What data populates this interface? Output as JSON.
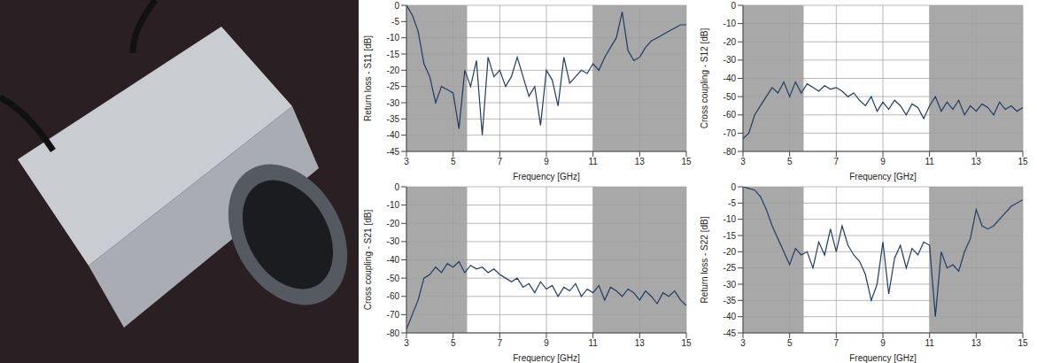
{
  "chart_data": [
    {
      "type": "line",
      "x_label": "Frequency [GHz]",
      "y_label": "Return loss - S11 [dB]",
      "grid": true,
      "color": "#1f3c64",
      "xlim": [
        3,
        15
      ],
      "xticks": [
        3,
        5,
        7,
        9,
        11,
        13,
        15
      ],
      "ylim": [
        -45,
        0
      ],
      "yticks": [
        -45,
        -40,
        -35,
        -30,
        -25,
        -20,
        -15,
        -10,
        -5,
        0
      ],
      "bands": [
        [
          3,
          5.6
        ],
        [
          11,
          15
        ]
      ],
      "x": [
        3,
        3.25,
        3.5,
        3.75,
        4,
        4.25,
        4.5,
        4.75,
        5,
        5.25,
        5.5,
        5.75,
        6,
        6.25,
        6.5,
        6.75,
        7,
        7.25,
        7.5,
        7.75,
        8,
        8.25,
        8.5,
        8.75,
        9,
        9.25,
        9.5,
        9.75,
        10,
        10.25,
        10.5,
        10.75,
        11,
        11.25,
        11.5,
        11.75,
        12,
        12.25,
        12.5,
        12.75,
        13,
        13.25,
        13.5,
        13.75,
        14,
        14.25,
        14.5,
        14.75,
        15
      ],
      "values": [
        0,
        -3,
        -8,
        -18,
        -22,
        -30,
        -25,
        -26,
        -27,
        -38,
        -20,
        -25,
        -17,
        -40,
        -16,
        -22,
        -20,
        -25,
        -22,
        -16,
        -22,
        -28,
        -25,
        -37,
        -20,
        -23,
        -31,
        -16,
        -24,
        -22,
        -20,
        -21,
        -18,
        -20,
        -16,
        -13,
        -10,
        -2,
        -14,
        -17,
        -16,
        -13,
        -11,
        -10,
        -9,
        -8,
        -7,
        -6,
        -6
      ]
    },
    {
      "type": "line",
      "x_label": "Frequency [GHz]",
      "y_label": "Cross coupling - S12 [dB]",
      "grid": true,
      "color": "#1f3c64",
      "xlim": [
        3,
        15
      ],
      "xticks": [
        3,
        5,
        7,
        9,
        11,
        13,
        15
      ],
      "ylim": [
        -80,
        0
      ],
      "yticks": [
        -80,
        -70,
        -60,
        -50,
        -40,
        -30,
        -20,
        -10,
        0
      ],
      "bands": [
        [
          3,
          5.6
        ],
        [
          11,
          15
        ]
      ],
      "x": [
        3,
        3.25,
        3.5,
        3.75,
        4,
        4.25,
        4.5,
        4.75,
        5,
        5.25,
        5.5,
        5.75,
        6,
        6.25,
        6.5,
        6.75,
        7,
        7.25,
        7.5,
        7.75,
        8,
        8.25,
        8.5,
        8.75,
        9,
        9.25,
        9.5,
        9.75,
        10,
        10.25,
        10.5,
        10.75,
        11,
        11.25,
        11.5,
        11.75,
        12,
        12.25,
        12.5,
        12.75,
        13,
        13.25,
        13.5,
        13.75,
        14,
        14.25,
        14.5,
        14.75,
        15
      ],
      "values": [
        -73,
        -70,
        -60,
        -55,
        -50,
        -45,
        -48,
        -42,
        -50,
        -42,
        -48,
        -43,
        -45,
        -47,
        -44,
        -46,
        -45,
        -47,
        -50,
        -48,
        -52,
        -55,
        -50,
        -58,
        -53,
        -57,
        -52,
        -55,
        -60,
        -54,
        -56,
        -62,
        -55,
        -50,
        -58,
        -53,
        -57,
        -52,
        -60,
        -55,
        -58,
        -54,
        -56,
        -60,
        -53,
        -57,
        -55,
        -58,
        -56
      ]
    },
    {
      "type": "line",
      "x_label": "Frequency [GHz]",
      "y_label": "Cross coupling - S21 [dB]",
      "grid": true,
      "color": "#1f3c64",
      "xlim": [
        3,
        15
      ],
      "xticks": [
        3,
        5,
        7,
        9,
        11,
        13,
        15
      ],
      "ylim": [
        -80,
        0
      ],
      "yticks": [
        -80,
        -70,
        -60,
        -50,
        -40,
        -30,
        -20,
        -10,
        0
      ],
      "bands": [
        [
          3,
          5.6
        ],
        [
          11,
          15
        ]
      ],
      "x": [
        3,
        3.25,
        3.5,
        3.75,
        4,
        4.25,
        4.5,
        4.75,
        5,
        5.25,
        5.5,
        5.75,
        6,
        6.25,
        6.5,
        6.75,
        7,
        7.25,
        7.5,
        7.75,
        8,
        8.25,
        8.5,
        8.75,
        9,
        9.25,
        9.5,
        9.75,
        10,
        10.25,
        10.5,
        10.75,
        11,
        11.25,
        11.5,
        11.75,
        12,
        12.25,
        12.5,
        12.75,
        13,
        13.25,
        13.5,
        13.75,
        14,
        14.25,
        14.5,
        14.75,
        15
      ],
      "values": [
        -78,
        -70,
        -62,
        -50,
        -48,
        -44,
        -47,
        -42,
        -44,
        -41,
        -47,
        -43,
        -45,
        -44,
        -47,
        -45,
        -48,
        -50,
        -52,
        -50,
        -55,
        -53,
        -58,
        -52,
        -56,
        -54,
        -60,
        -55,
        -57,
        -53,
        -60,
        -56,
        -58,
        -54,
        -62,
        -55,
        -57,
        -60,
        -56,
        -58,
        -62,
        -57,
        -60,
        -64,
        -58,
        -60,
        -57,
        -62,
        -65
      ]
    },
    {
      "type": "line",
      "x_label": "Frequency [GHz]",
      "y_label": "Return loss - S22 [dB]",
      "grid": true,
      "color": "#1f3c64",
      "xlim": [
        3,
        15
      ],
      "xticks": [
        3,
        5,
        7,
        9,
        11,
        13,
        15
      ],
      "ylim": [
        -45,
        0
      ],
      "yticks": [
        -45,
        -40,
        -35,
        -30,
        -25,
        -20,
        -15,
        -10,
        -5,
        0
      ],
      "bands": [
        [
          3,
          5.6
        ],
        [
          11,
          15
        ]
      ],
      "x": [
        3,
        3.25,
        3.5,
        3.75,
        4,
        4.25,
        4.5,
        4.75,
        5,
        5.25,
        5.5,
        5.75,
        6,
        6.25,
        6.5,
        6.75,
        7,
        7.25,
        7.5,
        7.75,
        8,
        8.25,
        8.5,
        8.75,
        9,
        9.25,
        9.5,
        9.75,
        10,
        10.25,
        10.5,
        10.75,
        11,
        11.25,
        11.5,
        11.75,
        12,
        12.25,
        12.5,
        12.75,
        13,
        13.25,
        13.5,
        13.75,
        14,
        14.25,
        14.5,
        14.75,
        15
      ],
      "values": [
        0,
        -0.5,
        -1,
        -3,
        -7,
        -12,
        -16,
        -20,
        -24,
        -19,
        -21,
        -20,
        -25,
        -17,
        -21,
        -13,
        -20,
        -12,
        -18,
        -21,
        -23,
        -27,
        -35,
        -30,
        -17,
        -33,
        -22,
        -18,
        -25,
        -19,
        -21,
        -17,
        -18,
        -40,
        -20,
        -25,
        -24,
        -26,
        -20,
        -16,
        -7,
        -12,
        -13,
        -12,
        -10,
        -8,
        -6,
        -5,
        -4
      ]
    }
  ]
}
